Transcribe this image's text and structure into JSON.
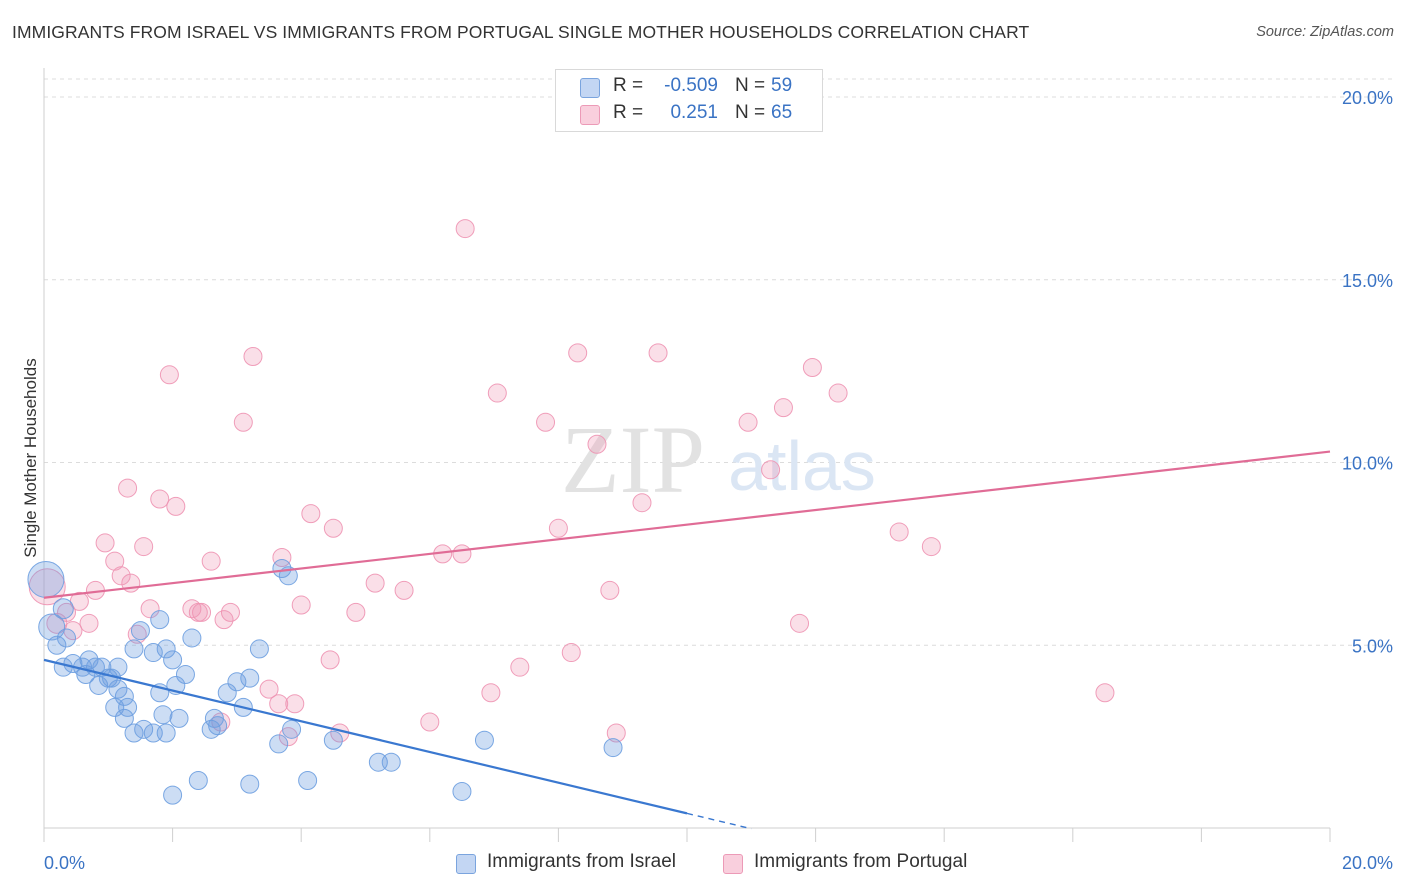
{
  "title": "IMMIGRANTS FROM ISRAEL VS IMMIGRANTS FROM PORTUGAL SINGLE MOTHER HOUSEHOLDS CORRELATION CHART",
  "source": "Source: ZipAtlas.com",
  "legend": {
    "r_label": "R =",
    "n_label": "N =",
    "israel": {
      "r": "-0.509",
      "n": "59"
    },
    "portugal": {
      "r": "0.251",
      "n": "65"
    }
  },
  "watermark": {
    "zip": "ZIP",
    "atlas": "atlas"
  },
  "chart_data": {
    "type": "scatter",
    "title": "IMMIGRANTS FROM ISRAEL VS IMMIGRANTS FROM PORTUGAL SINGLE MOTHER HOUSEHOLDS CORRELATION CHART",
    "xlabel": "",
    "ylabel": "Single Mother Households",
    "xlim": [
      0,
      20
    ],
    "ylim": [
      0,
      20
    ],
    "x_tick_labels": [
      "0.0%",
      "20.0%"
    ],
    "y_tick_labels": [
      "5.0%",
      "10.0%",
      "15.0%",
      "20.0%"
    ],
    "y_ticks": [
      5,
      10,
      15,
      20
    ],
    "colors": {
      "israel": "#6d9fe0",
      "portugal": "#ee94b3",
      "israel_line": "#3a78d0",
      "portugal_line": "#e06c96"
    },
    "series": [
      {
        "name": "Immigrants from Israel",
        "key": "israel",
        "trend": {
          "x0": 0,
          "y0": 4.6,
          "x1": 10,
          "y1": 0.4,
          "dash_to_x": 11
        },
        "points": [
          [
            0.03,
            6.8,
            18
          ],
          [
            0.12,
            5.5,
            13
          ],
          [
            0.3,
            6.0,
            10
          ],
          [
            0.35,
            5.2,
            9
          ],
          [
            0.2,
            5.0,
            9
          ],
          [
            0.45,
            4.5,
            9
          ],
          [
            0.6,
            4.4,
            9
          ],
          [
            0.7,
            4.6,
            9
          ],
          [
            0.8,
            4.4,
            9
          ],
          [
            0.65,
            4.2,
            9
          ],
          [
            0.9,
            4.4,
            9
          ],
          [
            1.0,
            4.1,
            9
          ],
          [
            0.85,
            3.9,
            9
          ],
          [
            1.15,
            3.8,
            9
          ],
          [
            1.25,
            3.6,
            9
          ],
          [
            1.1,
            3.3,
            9
          ],
          [
            1.3,
            3.3,
            9
          ],
          [
            1.25,
            3.0,
            9
          ],
          [
            1.4,
            2.6,
            9
          ],
          [
            1.55,
            2.7,
            9
          ],
          [
            1.7,
            2.6,
            9
          ],
          [
            1.9,
            2.6,
            9
          ],
          [
            1.85,
            3.1,
            9
          ],
          [
            2.1,
            3.0,
            9
          ],
          [
            1.8,
            3.7,
            9
          ],
          [
            2.05,
            3.9,
            9
          ],
          [
            2.2,
            4.2,
            9
          ],
          [
            2.0,
            4.6,
            9
          ],
          [
            1.9,
            4.9,
            9
          ],
          [
            1.7,
            4.8,
            9
          ],
          [
            1.5,
            5.4,
            9
          ],
          [
            1.8,
            5.7,
            9
          ],
          [
            2.3,
            5.2,
            9
          ],
          [
            1.4,
            4.9,
            9
          ],
          [
            1.15,
            4.4,
            9
          ],
          [
            1.05,
            4.1,
            9
          ],
          [
            2.6,
            2.7,
            9
          ],
          [
            2.7,
            2.8,
            9
          ],
          [
            2.65,
            3.0,
            9
          ],
          [
            2.85,
            3.7,
            9
          ],
          [
            3.0,
            4.0,
            9
          ],
          [
            3.1,
            3.3,
            9
          ],
          [
            3.2,
            4.1,
            9
          ],
          [
            3.35,
            4.9,
            9
          ],
          [
            3.7,
            7.1,
            9
          ],
          [
            3.8,
            6.9,
            9
          ],
          [
            3.85,
            2.7,
            9
          ],
          [
            3.65,
            2.3,
            9
          ],
          [
            4.5,
            2.4,
            9
          ],
          [
            5.2,
            1.8,
            9
          ],
          [
            5.4,
            1.8,
            9
          ],
          [
            6.5,
            1.0,
            9
          ],
          [
            6.85,
            2.4,
            9
          ],
          [
            8.85,
            2.2,
            9
          ],
          [
            2.0,
            0.9,
            9
          ],
          [
            2.4,
            1.3,
            9
          ],
          [
            3.2,
            1.2,
            9
          ],
          [
            4.1,
            1.3,
            9
          ],
          [
            0.3,
            4.4,
            9
          ]
        ]
      },
      {
        "name": "Immigrants from Portugal",
        "key": "portugal",
        "trend": {
          "x0": 0,
          "y0": 6.3,
          "x1": 20,
          "y1": 10.3
        },
        "points": [
          [
            0.05,
            6.6,
            18
          ],
          [
            0.2,
            5.6,
            10
          ],
          [
            0.35,
            5.9,
            9
          ],
          [
            0.45,
            5.4,
            9
          ],
          [
            0.55,
            6.2,
            9
          ],
          [
            0.7,
            5.6,
            9
          ],
          [
            0.8,
            6.5,
            9
          ],
          [
            0.95,
            7.8,
            9
          ],
          [
            1.1,
            7.3,
            9
          ],
          [
            1.2,
            6.9,
            9
          ],
          [
            1.35,
            6.7,
            9
          ],
          [
            1.45,
            5.3,
            9
          ],
          [
            1.55,
            7.7,
            9
          ],
          [
            1.65,
            6.0,
            9
          ],
          [
            1.8,
            9.0,
            9
          ],
          [
            1.3,
            9.3,
            9
          ],
          [
            2.05,
            8.8,
            9
          ],
          [
            2.3,
            6.0,
            9
          ],
          [
            2.45,
            5.9,
            9
          ],
          [
            2.6,
            7.3,
            9
          ],
          [
            2.8,
            5.7,
            9
          ],
          [
            2.9,
            5.9,
            9
          ],
          [
            1.95,
            12.4,
            9
          ],
          [
            3.1,
            11.1,
            9
          ],
          [
            3.25,
            12.9,
            9
          ],
          [
            3.5,
            3.8,
            9
          ],
          [
            3.7,
            7.4,
            9
          ],
          [
            3.65,
            3.4,
            9
          ],
          [
            3.9,
            3.4,
            9
          ],
          [
            4.0,
            6.1,
            9
          ],
          [
            4.15,
            8.6,
            9
          ],
          [
            4.5,
            8.2,
            9
          ],
          [
            4.45,
            4.6,
            9
          ],
          [
            4.85,
            5.9,
            9
          ],
          [
            5.15,
            6.7,
            9
          ],
          [
            5.6,
            6.5,
            9
          ],
          [
            6.0,
            2.9,
            9
          ],
          [
            6.2,
            7.5,
            9
          ],
          [
            6.5,
            7.5,
            9
          ],
          [
            6.55,
            16.4,
            9
          ],
          [
            6.95,
            3.7,
            9
          ],
          [
            7.05,
            11.9,
            9
          ],
          [
            7.4,
            4.4,
            9
          ],
          [
            7.8,
            11.1,
            9
          ],
          [
            8.0,
            8.2,
            9
          ],
          [
            8.2,
            4.8,
            9
          ],
          [
            8.3,
            13.0,
            9
          ],
          [
            8.6,
            10.5,
            9
          ],
          [
            8.8,
            6.5,
            9
          ],
          [
            8.9,
            2.6,
            9
          ],
          [
            9.3,
            8.9,
            9
          ],
          [
            9.55,
            13.0,
            9
          ],
          [
            10.95,
            11.1,
            9
          ],
          [
            11.3,
            9.8,
            9
          ],
          [
            11.5,
            11.5,
            9
          ],
          [
            11.75,
            5.6,
            9
          ],
          [
            11.95,
            12.6,
            9
          ],
          [
            12.35,
            11.9,
            9
          ],
          [
            13.3,
            8.1,
            9
          ],
          [
            13.8,
            7.7,
            9
          ],
          [
            16.5,
            3.7,
            9
          ],
          [
            2.75,
            2.9,
            9
          ],
          [
            4.6,
            2.6,
            9
          ],
          [
            3.8,
            2.5,
            9
          ],
          [
            2.4,
            5.9,
            9
          ]
        ]
      }
    ]
  },
  "bottom_legend": {
    "israel": "Immigrants from Israel",
    "portugal": "Immigrants from Portugal"
  }
}
